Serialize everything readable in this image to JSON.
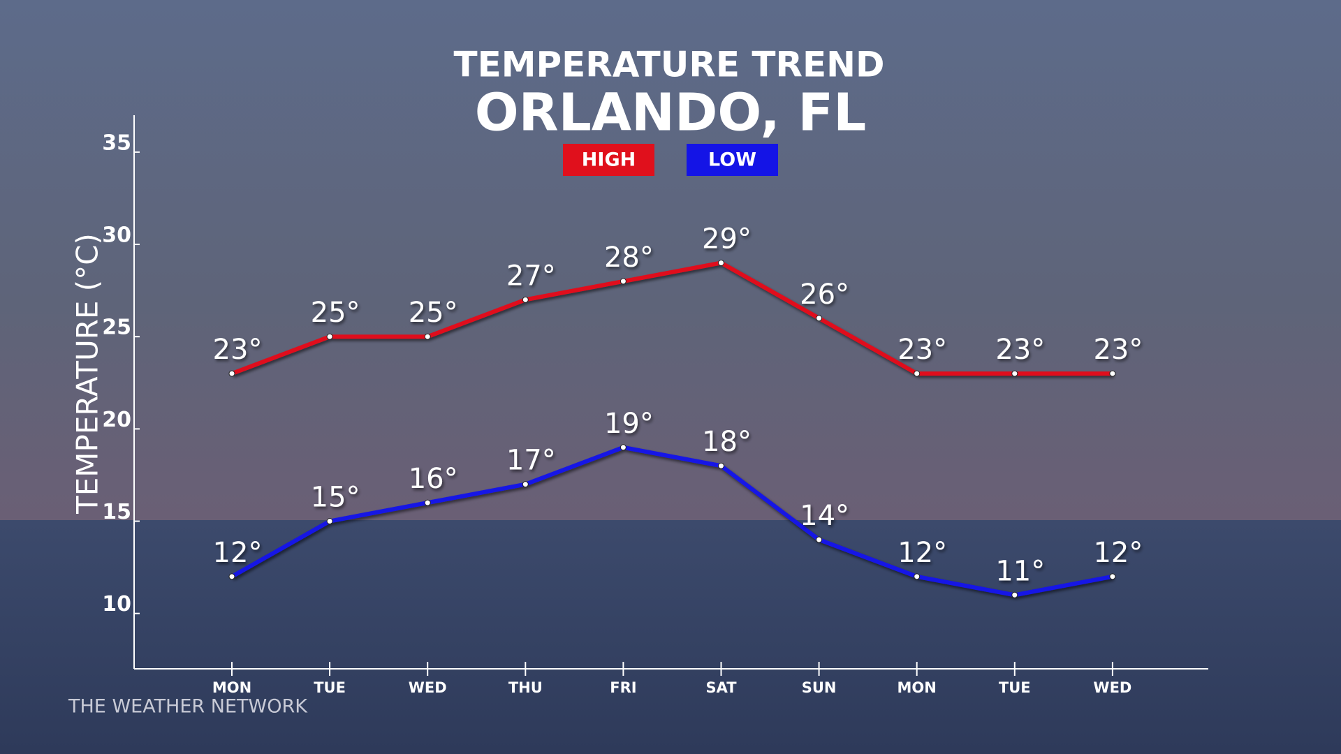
{
  "chart_data": {
    "type": "line",
    "title": "TEMPERATURE TREND",
    "subtitle": "ORLANDO, FL",
    "ylabel": "TEMPERATURE (°C)",
    "source": "THE WEATHER NETWORK",
    "categories": [
      "MON",
      "TUE",
      "WED",
      "THU",
      "FRI",
      "SAT",
      "SUN",
      "MON",
      "TUE",
      "WED"
    ],
    "series": [
      {
        "name": "HIGH",
        "color": "#e0101c",
        "values": [
          23,
          25,
          25,
          27,
          28,
          29,
          26,
          23,
          23,
          23
        ],
        "value_labels": [
          "23°",
          "25°",
          "25°",
          "27°",
          "28°",
          "29°",
          "26°",
          "23°",
          "23°",
          "23°"
        ]
      },
      {
        "name": "LOW",
        "color": "#1414e6",
        "values": [
          12,
          15,
          16,
          17,
          19,
          18,
          14,
          12,
          11,
          12
        ],
        "value_labels": [
          "12°",
          "15°",
          "16°",
          "17°",
          "19°",
          "18°",
          "14°",
          "12°",
          "11°",
          "12°"
        ]
      }
    ],
    "ylim": [
      7,
      37
    ],
    "yticks": [
      10,
      15,
      20,
      25,
      30,
      35
    ],
    "grid": false,
    "legend": "top"
  }
}
